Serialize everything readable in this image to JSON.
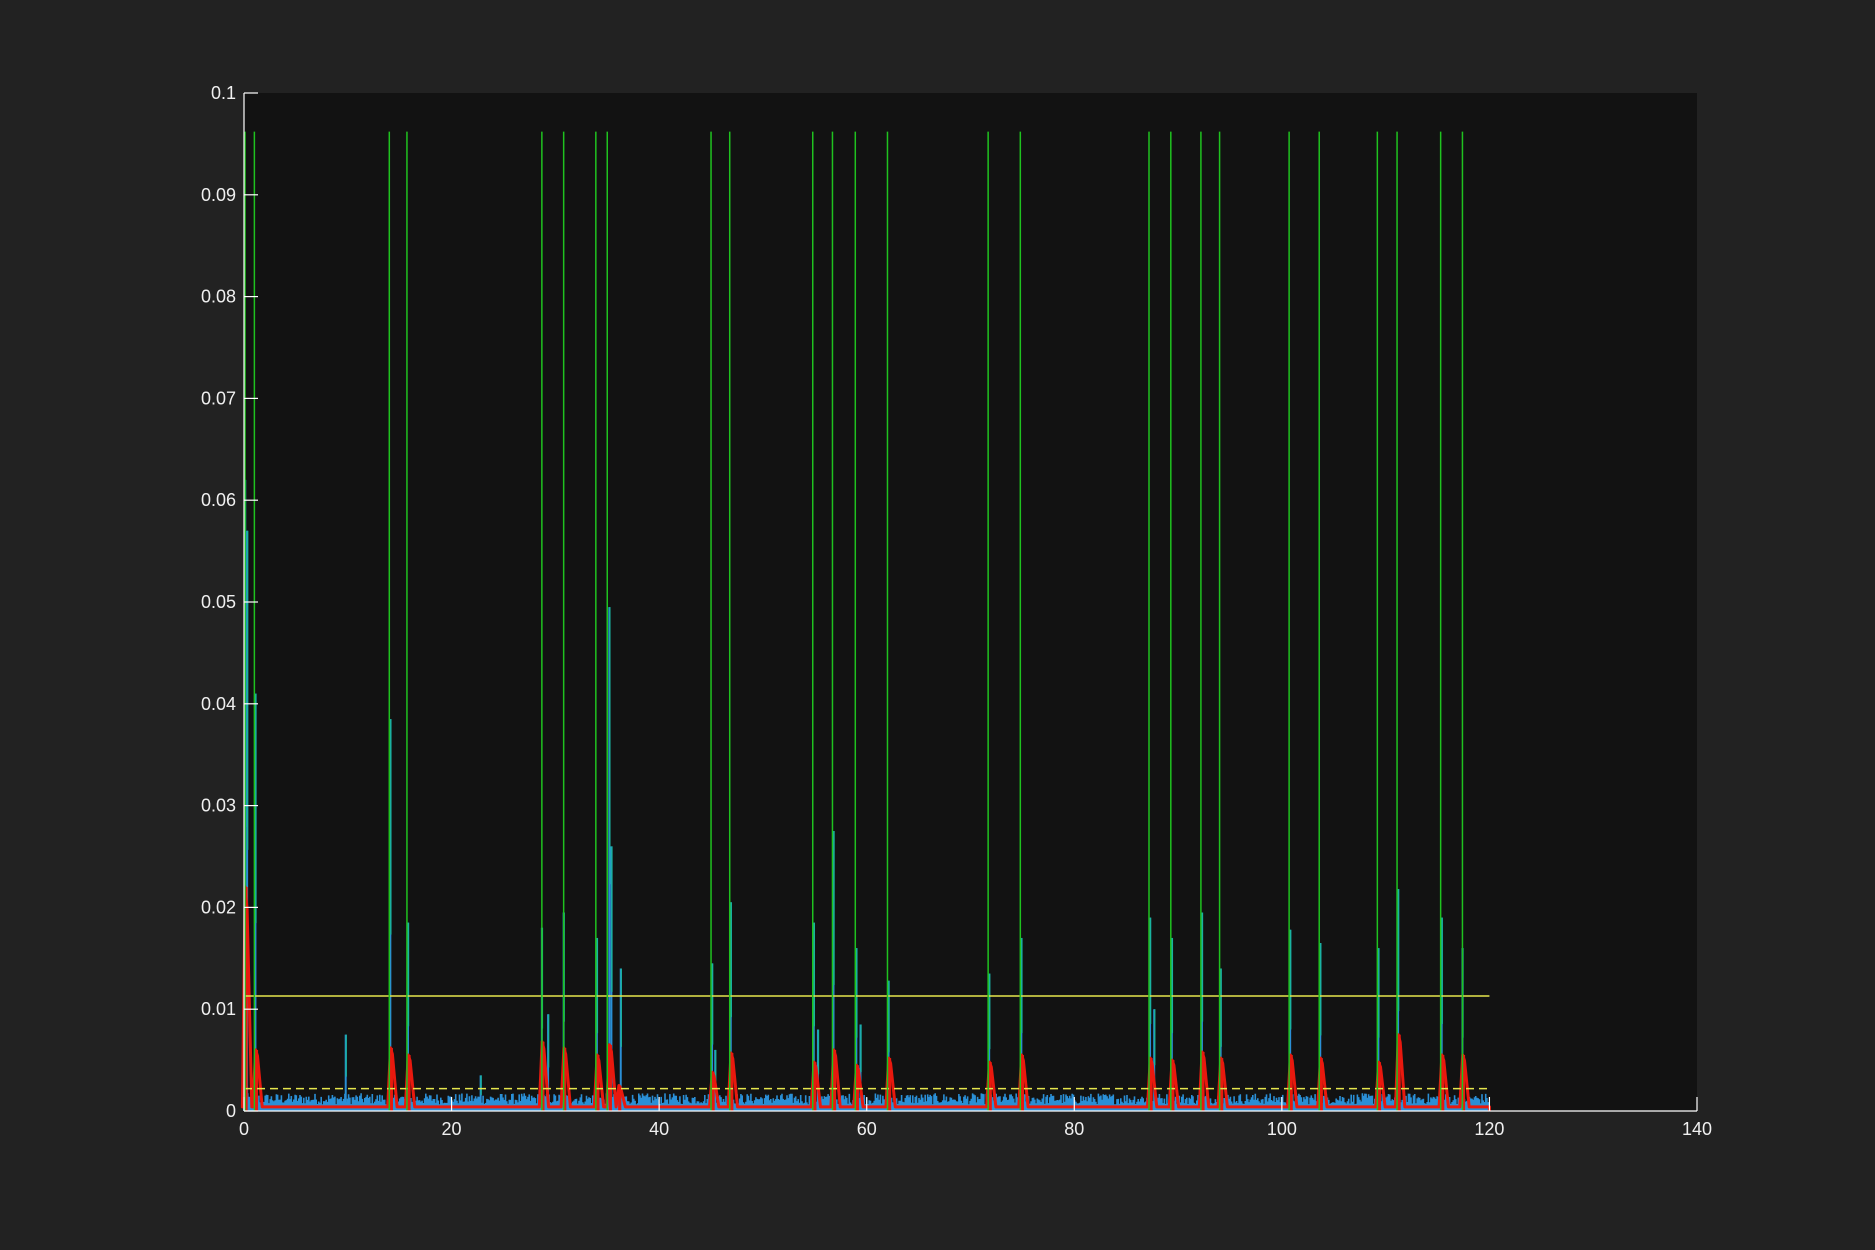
{
  "chart_data": {
    "type": "line",
    "title": "",
    "xlabel": "",
    "ylabel": "",
    "xlim": [
      0,
      140
    ],
    "ylim": [
      0,
      0.1
    ],
    "xticks": [
      "0",
      "20",
      "40",
      "60",
      "80",
      "100",
      "120",
      "140"
    ],
    "yticks": [
      "0",
      "0.01",
      "0.02",
      "0.03",
      "0.04",
      "0.05",
      "0.06",
      "0.07",
      "0.08",
      "0.09",
      "0.1"
    ],
    "grid": false,
    "legend": "none",
    "signal_end_x": 120,
    "colors": {
      "figure_background": "#222222",
      "axes_background": "#121212",
      "axis_lines": "#ffffff",
      "signal": "#2a8fd6",
      "envelope": "#e8190e",
      "onset_markers": "#1fc21f",
      "threshold": "#e6e64c"
    },
    "series": [
      {
        "role": "signal",
        "baseline": 0.0012,
        "peaks": [
          {
            "x": 0.1,
            "y": 0.062
          },
          {
            "x": 0.3,
            "y": 0.057
          },
          {
            "x": 1.1,
            "y": 0.041
          },
          {
            "x": 9.8,
            "y": 0.0075
          },
          {
            "x": 14.1,
            "y": 0.0385
          },
          {
            "x": 15.8,
            "y": 0.0185
          },
          {
            "x": 22.8,
            "y": 0.0035
          },
          {
            "x": 28.7,
            "y": 0.018
          },
          {
            "x": 29.3,
            "y": 0.0095
          },
          {
            "x": 30.8,
            "y": 0.0195
          },
          {
            "x": 34.0,
            "y": 0.017
          },
          {
            "x": 35.2,
            "y": 0.0495
          },
          {
            "x": 35.4,
            "y": 0.026
          },
          {
            "x": 36.3,
            "y": 0.014
          },
          {
            "x": 45.1,
            "y": 0.0145
          },
          {
            "x": 45.4,
            "y": 0.006
          },
          {
            "x": 46.9,
            "y": 0.0205
          },
          {
            "x": 54.9,
            "y": 0.0185
          },
          {
            "x": 55.3,
            "y": 0.008
          },
          {
            "x": 56.8,
            "y": 0.0275
          },
          {
            "x": 59.0,
            "y": 0.016
          },
          {
            "x": 59.4,
            "y": 0.0085
          },
          {
            "x": 62.1,
            "y": 0.0128
          },
          {
            "x": 71.8,
            "y": 0.0135
          },
          {
            "x": 74.9,
            "y": 0.017
          },
          {
            "x": 87.3,
            "y": 0.019
          },
          {
            "x": 87.7,
            "y": 0.01
          },
          {
            "x": 89.4,
            "y": 0.017
          },
          {
            "x": 92.3,
            "y": 0.0195
          },
          {
            "x": 94.1,
            "y": 0.014
          },
          {
            "x": 100.8,
            "y": 0.0178
          },
          {
            "x": 103.7,
            "y": 0.0165
          },
          {
            "x": 109.3,
            "y": 0.016
          },
          {
            "x": 111.2,
            "y": 0.0218
          },
          {
            "x": 115.4,
            "y": 0.019
          },
          {
            "x": 117.4,
            "y": 0.016
          }
        ]
      },
      {
        "role": "envelope",
        "baseline": 0.0004,
        "peaks": [
          {
            "x": 0.2,
            "y": 0.022
          },
          {
            "x": 1.2,
            "y": 0.006
          },
          {
            "x": 14.2,
            "y": 0.0062
          },
          {
            "x": 15.9,
            "y": 0.0055
          },
          {
            "x": 28.8,
            "y": 0.0068
          },
          {
            "x": 30.9,
            "y": 0.0062
          },
          {
            "x": 34.1,
            "y": 0.0055
          },
          {
            "x": 35.3,
            "y": 0.0065
          },
          {
            "x": 36.2,
            "y": 0.0025
          },
          {
            "x": 45.2,
            "y": 0.0038
          },
          {
            "x": 47.0,
            "y": 0.0057
          },
          {
            "x": 55.0,
            "y": 0.0048
          },
          {
            "x": 56.9,
            "y": 0.006
          },
          {
            "x": 59.1,
            "y": 0.0045
          },
          {
            "x": 62.2,
            "y": 0.0052
          },
          {
            "x": 71.9,
            "y": 0.0048
          },
          {
            "x": 75.0,
            "y": 0.0055
          },
          {
            "x": 87.4,
            "y": 0.0052
          },
          {
            "x": 89.5,
            "y": 0.005
          },
          {
            "x": 92.4,
            "y": 0.0058
          },
          {
            "x": 94.2,
            "y": 0.0052
          },
          {
            "x": 100.9,
            "y": 0.0055
          },
          {
            "x": 103.8,
            "y": 0.0052
          },
          {
            "x": 109.4,
            "y": 0.0048
          },
          {
            "x": 111.3,
            "y": 0.0075
          },
          {
            "x": 115.5,
            "y": 0.0055
          },
          {
            "x": 117.5,
            "y": 0.0055
          }
        ]
      }
    ],
    "onset_markers": {
      "y_top": 0.0962,
      "x": [
        0.1,
        1.0,
        14.0,
        15.7,
        28.7,
        30.8,
        33.9,
        35.0,
        45.0,
        46.8,
        54.8,
        56.7,
        58.9,
        62.0,
        71.7,
        74.8,
        87.2,
        89.3,
        92.2,
        94.0,
        100.7,
        103.6,
        109.2,
        111.1,
        115.3,
        117.4
      ]
    },
    "threshold_lines": [
      {
        "y": 0.0113,
        "x_start": 0,
        "x_end": 120,
        "style": "solid"
      },
      {
        "y": 0.0022,
        "x_start": 0,
        "x_end": 120,
        "style": "dashed"
      }
    ]
  }
}
